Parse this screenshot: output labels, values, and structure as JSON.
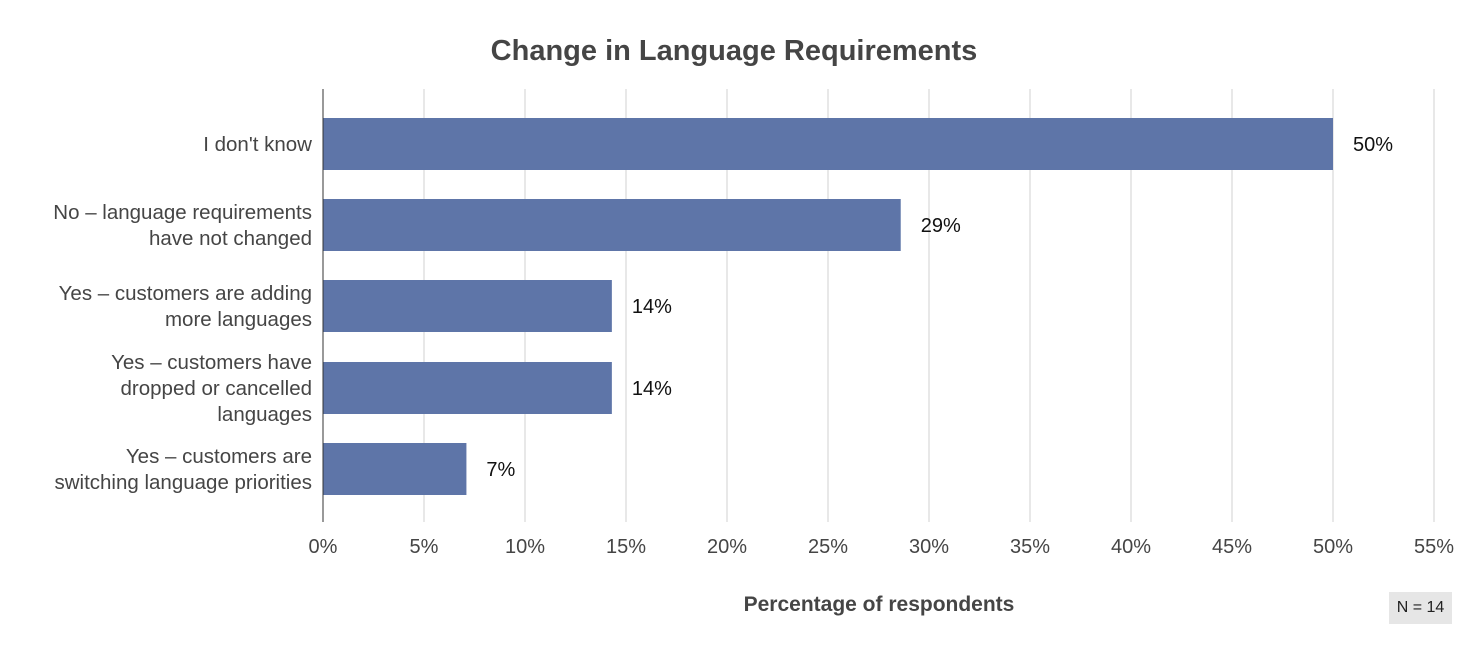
{
  "chart_data": {
    "type": "bar",
    "orientation": "horizontal",
    "title": "Change in Language Requirements",
    "xlabel": "Percentage of respondents",
    "ylabel": "",
    "categories": [
      [
        "I don't know"
      ],
      [
        "No – language requirements",
        "have not changed"
      ],
      [
        "Yes – customers are adding",
        "more languages"
      ],
      [
        "Yes – customers have",
        "dropped or cancelled",
        "languages"
      ],
      [
        "Yes – customers are",
        "switching language priorities"
      ]
    ],
    "values": [
      50,
      28.6,
      14.3,
      14.3,
      7.1
    ],
    "data_labels": [
      "50%",
      "29%",
      "14%",
      "14%",
      "7%"
    ],
    "xlim": [
      0,
      55
    ],
    "ticks": [
      0,
      5,
      10,
      15,
      20,
      25,
      30,
      35,
      40,
      45,
      50,
      55
    ],
    "tick_labels": [
      "0%",
      "5%",
      "10%",
      "15%",
      "20%",
      "25%",
      "30%",
      "35%",
      "40%",
      "45%",
      "50%",
      "55%"
    ],
    "grid": true,
    "legend": "none",
    "bar_color": "#5e75a8",
    "note": "N = 14"
  }
}
